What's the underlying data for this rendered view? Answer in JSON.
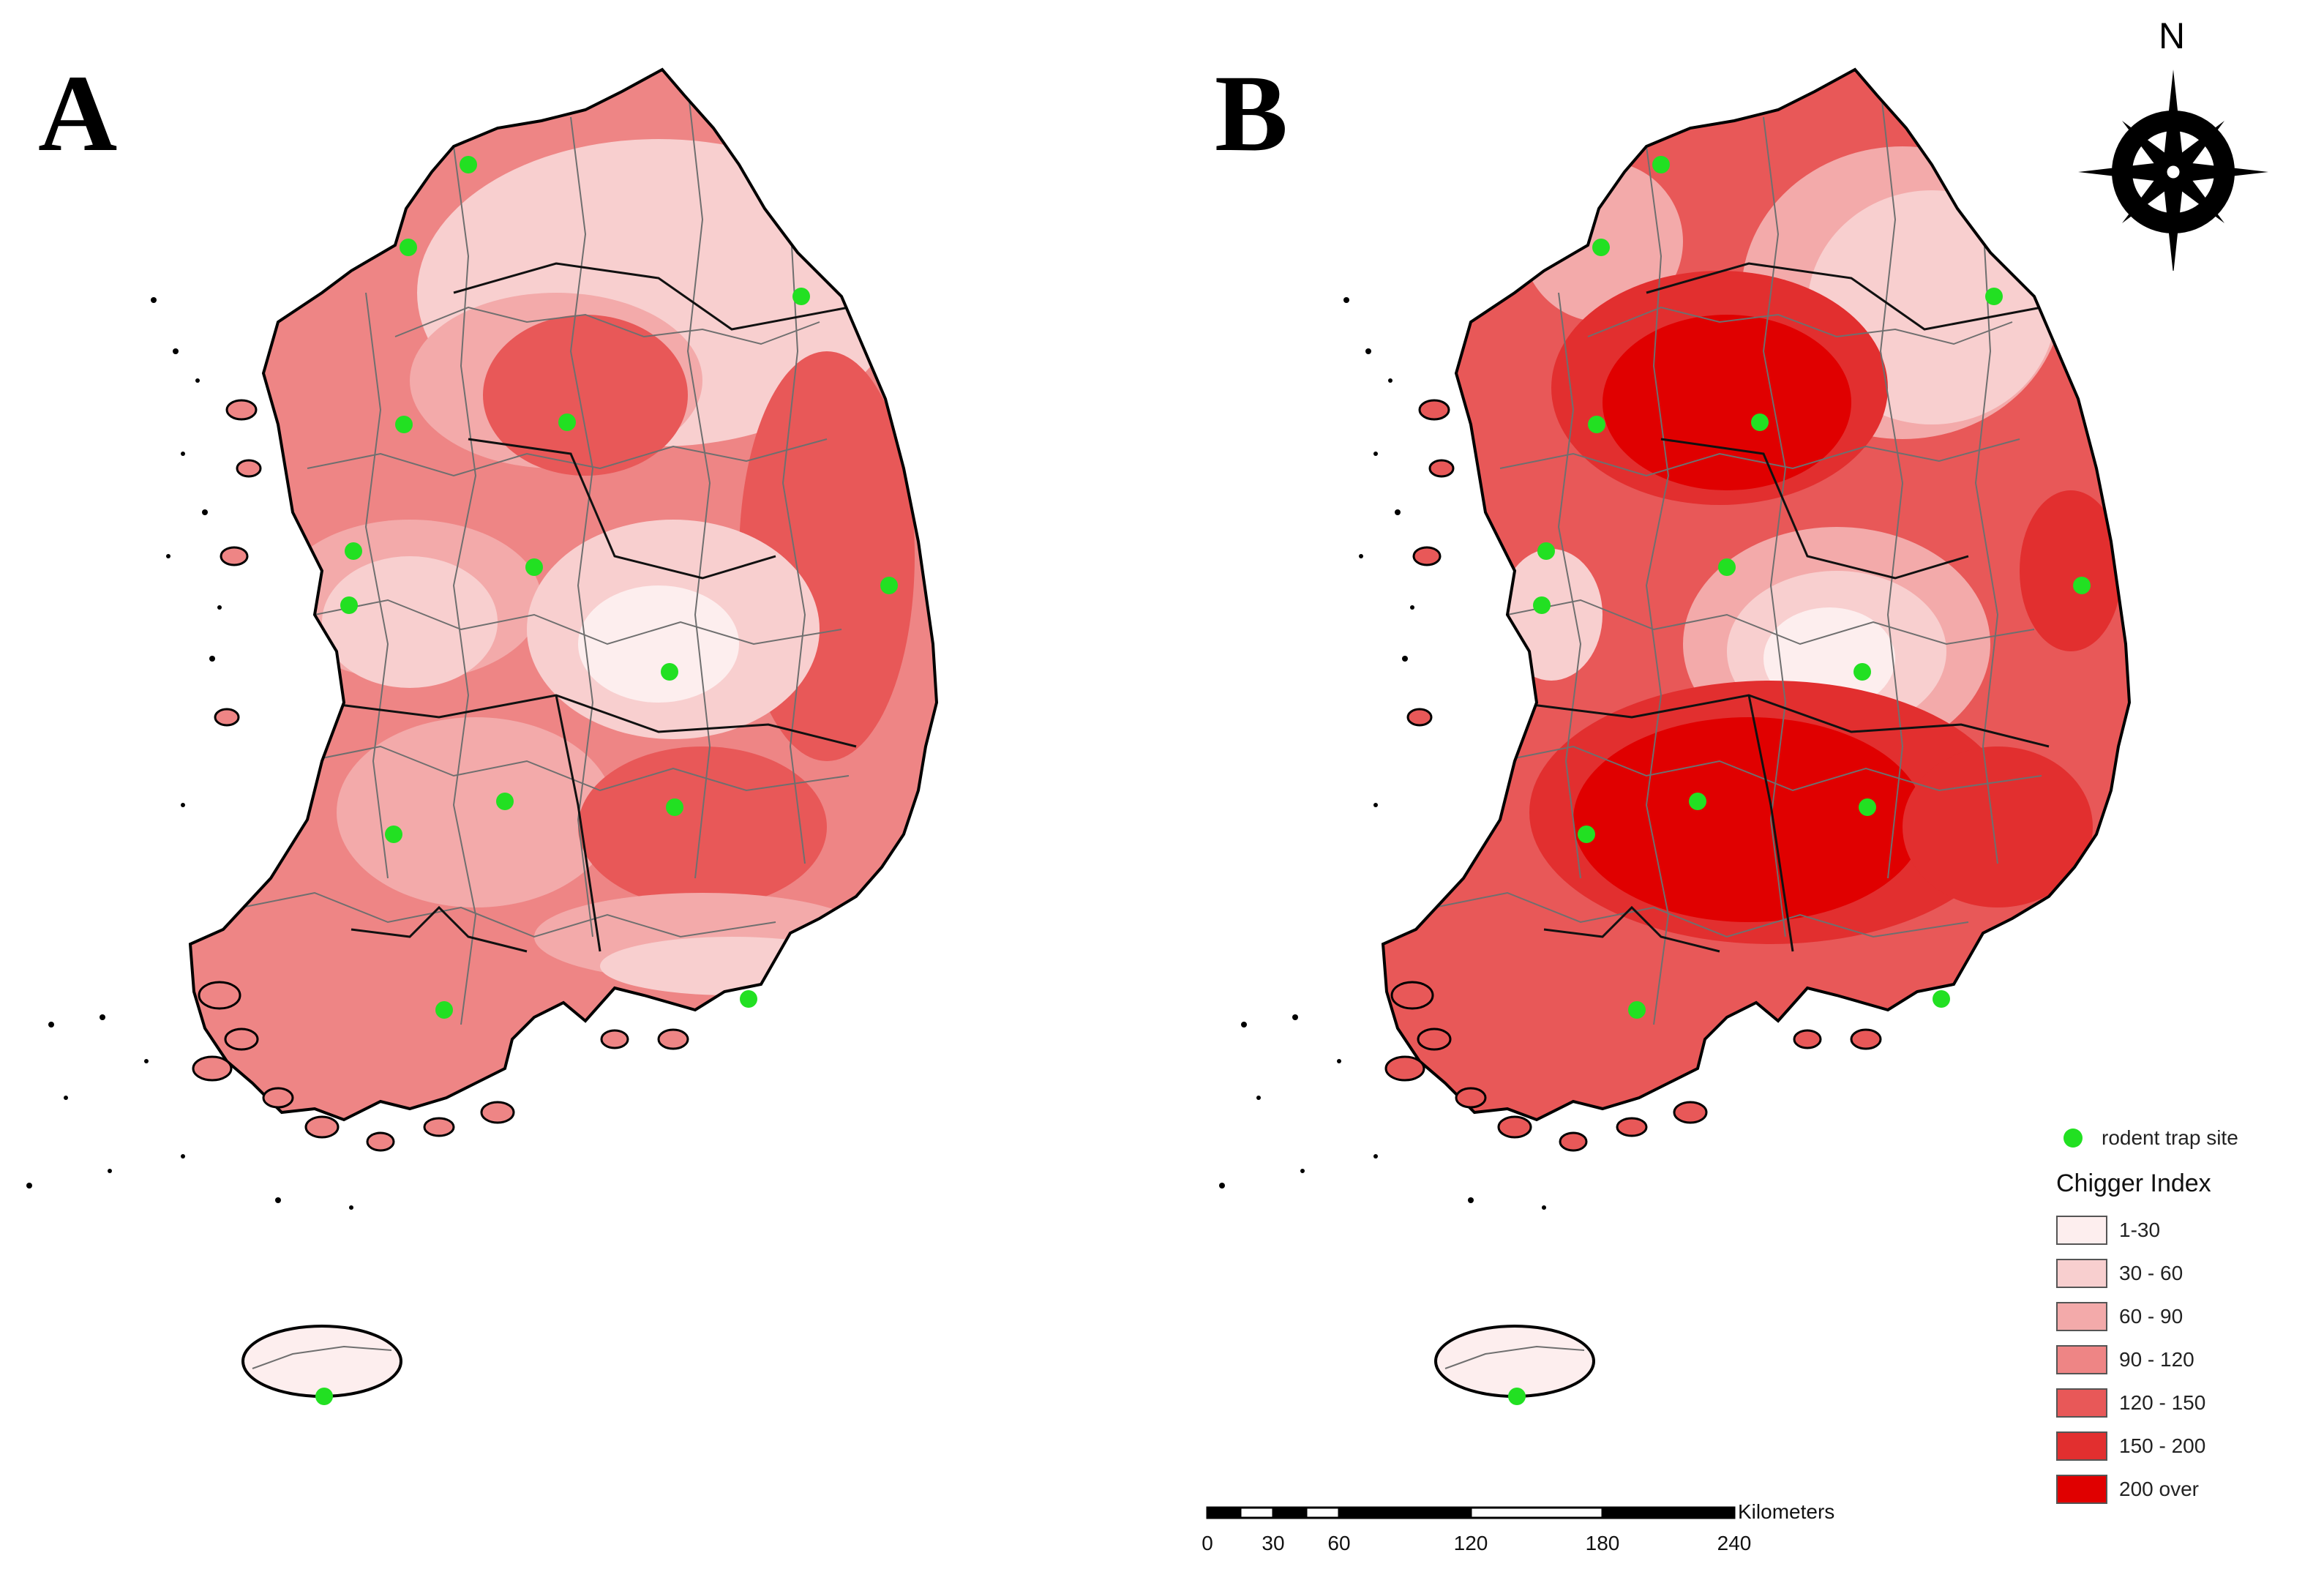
{
  "panels": [
    {
      "letter": "A"
    },
    {
      "letter": "B"
    }
  ],
  "compass": {
    "north_label": "N"
  },
  "legend": {
    "trap_label": "rodent trap site",
    "title": "Chigger Index",
    "classes": [
      {
        "label": "1-30",
        "color": "#fdeeee"
      },
      {
        "label": "30 - 60",
        "color": "#f8cfcf"
      },
      {
        "label": "60 - 90",
        "color": "#f3aaaa"
      },
      {
        "label": "90 - 120",
        "color": "#ee8585"
      },
      {
        "label": "120 - 150",
        "color": "#e85858"
      },
      {
        "label": "150 - 200",
        "color": "#e22f2f"
      },
      {
        "label": "200 over",
        "color": "#e00000"
      }
    ]
  },
  "scalebar": {
    "unit": "Kilometers",
    "ticks": [
      "0",
      "30",
      "60",
      "120",
      "180",
      "240"
    ]
  },
  "colors": {
    "trap_site": "#22e022",
    "land_base": "#ee8585",
    "boundary": "#000000",
    "inner_boundary": "#6f6f6f"
  }
}
